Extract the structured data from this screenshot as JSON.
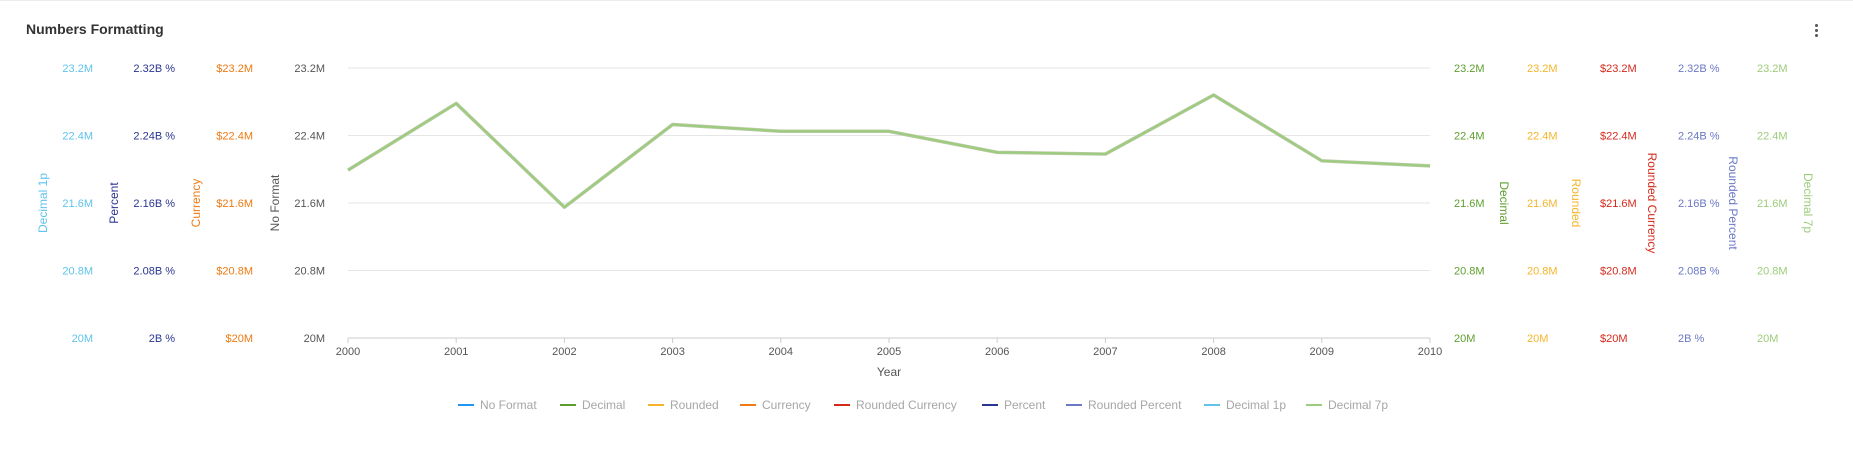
{
  "header": {
    "title": "Numbers Formatting"
  },
  "chart_data": {
    "type": "line",
    "title": "Numbers Formatting",
    "xlabel": "Year",
    "x": [
      2000,
      2001,
      2002,
      2003,
      2004,
      2005,
      2006,
      2007,
      2008,
      2009,
      2010
    ],
    "x_tick_labels": [
      "2000",
      "2001",
      "2002",
      "2003",
      "2004",
      "2005",
      "2006",
      "2007",
      "2008",
      "2009",
      "2010"
    ],
    "ylim": [
      20000000,
      23200000
    ],
    "y_ticks": [
      20000000,
      20800000,
      21600000,
      22400000,
      23200000
    ],
    "grid": true,
    "legend_position": "bottom",
    "series_values": [
      21990000,
      22780000,
      21550000,
      22530000,
      22450000,
      22450000,
      22200000,
      22180000,
      22880000,
      22100000,
      22040000
    ],
    "axes": [
      {
        "side": "left",
        "label": "Decimal 1p",
        "color": "#5fc3ec",
        "ticks": [
          "20M",
          "20.8M",
          "21.6M",
          "22.4M",
          "23.2M"
        ]
      },
      {
        "side": "left",
        "label": "Percent",
        "color": "#2a3590",
        "ticks": [
          "2B %",
          "2.08B %",
          "2.16B %",
          "2.24B %",
          "2.32B %"
        ]
      },
      {
        "side": "left",
        "label": "Currency",
        "color": "#ee7a12",
        "ticks": [
          "$20M",
          "$20.8M",
          "$21.6M",
          "$22.4M",
          "$23.2M"
        ]
      },
      {
        "side": "left",
        "label": "No Format",
        "color": "#555555",
        "ticks": [
          "20M",
          "20.8M",
          "21.6M",
          "22.4M",
          "23.2M"
        ]
      },
      {
        "side": "right",
        "label": "Decimal",
        "color": "#5e9e2f",
        "ticks": [
          "20M",
          "20.8M",
          "21.6M",
          "22.4M",
          "23.2M"
        ]
      },
      {
        "side": "right",
        "label": "Rounded",
        "color": "#f5b52a",
        "ticks": [
          "20M",
          "20.8M",
          "21.6M",
          "22.4M",
          "23.2M"
        ]
      },
      {
        "side": "right",
        "label": "Rounded Currency",
        "color": "#d42a1c",
        "ticks": [
          "$20M",
          "$20.8M",
          "$21.6M",
          "$22.4M",
          "$23.2M"
        ]
      },
      {
        "side": "right",
        "label": "Rounded Percent",
        "color": "#6b78c4",
        "ticks": [
          "2B %",
          "2.08B %",
          "2.16B %",
          "2.24B %",
          "2.32B %"
        ]
      },
      {
        "side": "right",
        "label": "Decimal 7p",
        "color": "#9ccc7c",
        "ticks": [
          "20M",
          "20.8M",
          "21.6M",
          "22.4M",
          "23.2M"
        ]
      }
    ],
    "series": [
      {
        "name": "No Format",
        "color": "#2196f3"
      },
      {
        "name": "Decimal",
        "color": "#5e9e2f"
      },
      {
        "name": "Rounded",
        "color": "#f5b52a"
      },
      {
        "name": "Currency",
        "color": "#ee7a12"
      },
      {
        "name": "Rounded Currency",
        "color": "#d42a1c"
      },
      {
        "name": "Percent",
        "color": "#2a3590"
      },
      {
        "name": "Rounded Percent",
        "color": "#6b78c4"
      },
      {
        "name": "Decimal 1p",
        "color": "#5fc3ec"
      },
      {
        "name": "Decimal 7p",
        "color": "#9ccc7c"
      }
    ],
    "legend_text_color": "#a6a6a6",
    "visible_line_color": "#9ccc7c"
  }
}
